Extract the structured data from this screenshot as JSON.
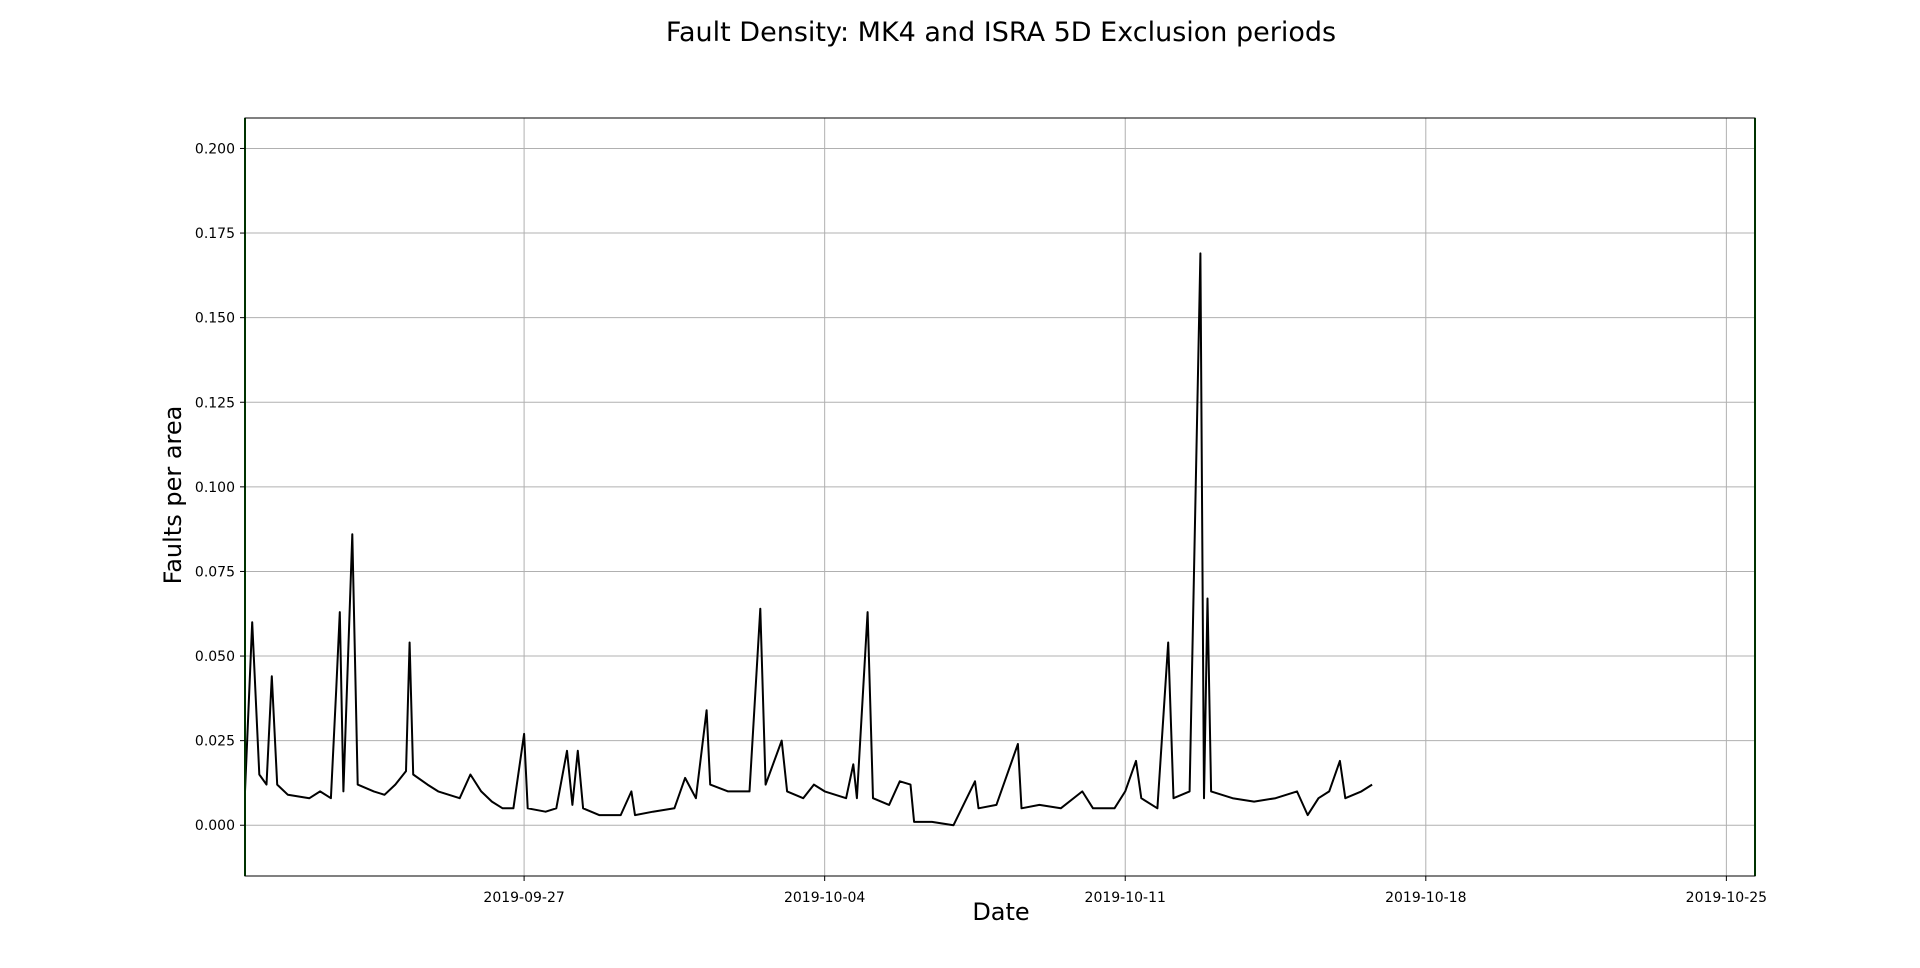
{
  "chart_data": {
    "type": "line",
    "title": "Fault Density: MK4 and ISRA 5D Exclusion periods",
    "xlabel": "Date",
    "ylabel": "Faults per area",
    "x_axis_type": "date",
    "xlim": [
      "2019-09-20T12:00",
      "2019-10-25T16:00"
    ],
    "ylim": [
      -0.015,
      0.209
    ],
    "grid": true,
    "x_ticks": [
      "2019-09-27",
      "2019-10-04",
      "2019-10-11",
      "2019-10-18",
      "2019-10-25"
    ],
    "y_ticks": [
      0.0,
      0.025,
      0.05,
      0.075,
      0.1,
      0.125,
      0.15,
      0.175,
      0.2
    ],
    "y_tick_labels": [
      "0.000",
      "0.025",
      "0.050",
      "0.075",
      "0.100",
      "0.125",
      "0.150",
      "0.175",
      "0.200"
    ],
    "exclusion_markers": {
      "color": "#006400",
      "x": [
        "2019-09-20T12:00",
        "2019-10-25T16:00"
      ]
    },
    "series": [
      {
        "color": "#000000",
        "points": [
          [
            "2019-09-20T12:00",
            0.01
          ],
          [
            "2019-09-20T16:00",
            0.06
          ],
          [
            "2019-09-20T20:00",
            0.015
          ],
          [
            "2019-09-21T00:00",
            0.012
          ],
          [
            "2019-09-21T03:00",
            0.044
          ],
          [
            "2019-09-21T06:00",
            0.012
          ],
          [
            "2019-09-21T12:00",
            0.009
          ],
          [
            "2019-09-22T00:00",
            0.008
          ],
          [
            "2019-09-22T06:00",
            0.01
          ],
          [
            "2019-09-22T12:00",
            0.008
          ],
          [
            "2019-09-22T15:00",
            0.04
          ],
          [
            "2019-09-22T17:00",
            0.063
          ],
          [
            "2019-09-22T19:00",
            0.01
          ],
          [
            "2019-09-23T00:00",
            0.086
          ],
          [
            "2019-09-23T03:00",
            0.012
          ],
          [
            "2019-09-23T12:00",
            0.01
          ],
          [
            "2019-09-23T18:00",
            0.009
          ],
          [
            "2019-09-24T00:00",
            0.012
          ],
          [
            "2019-09-24T06:00",
            0.016
          ],
          [
            "2019-09-24T08:00",
            0.054
          ],
          [
            "2019-09-24T10:00",
            0.015
          ],
          [
            "2019-09-24T18:00",
            0.012
          ],
          [
            "2019-09-25T00:00",
            0.01
          ],
          [
            "2019-09-25T12:00",
            0.008
          ],
          [
            "2019-09-25T18:00",
            0.015
          ],
          [
            "2019-09-26T00:00",
            0.01
          ],
          [
            "2019-09-26T06:00",
            0.007
          ],
          [
            "2019-09-26T12:00",
            0.005
          ],
          [
            "2019-09-26T18:00",
            0.005
          ],
          [
            "2019-09-27T00:00",
            0.027
          ],
          [
            "2019-09-27T02:00",
            0.005
          ],
          [
            "2019-09-27T12:00",
            0.004
          ],
          [
            "2019-09-27T18:00",
            0.005
          ],
          [
            "2019-09-28T00:00",
            0.022
          ],
          [
            "2019-09-28T03:00",
            0.006
          ],
          [
            "2019-09-28T06:00",
            0.022
          ],
          [
            "2019-09-28T09:00",
            0.005
          ],
          [
            "2019-09-28T18:00",
            0.003
          ],
          [
            "2019-09-29T06:00",
            0.003
          ],
          [
            "2019-09-29T12:00",
            0.01
          ],
          [
            "2019-09-29T14:00",
            0.003
          ],
          [
            "2019-09-30T00:00",
            0.004
          ],
          [
            "2019-09-30T12:00",
            0.005
          ],
          [
            "2019-09-30T18:00",
            0.014
          ],
          [
            "2019-10-01T00:00",
            0.008
          ],
          [
            "2019-10-01T06:00",
            0.034
          ],
          [
            "2019-10-01T08:00",
            0.012
          ],
          [
            "2019-10-01T18:00",
            0.01
          ],
          [
            "2019-10-02T06:00",
            0.01
          ],
          [
            "2019-10-02T12:00",
            0.064
          ],
          [
            "2019-10-02T15:00",
            0.012
          ],
          [
            "2019-10-03T00:00",
            0.025
          ],
          [
            "2019-10-03T03:00",
            0.01
          ],
          [
            "2019-10-03T12:00",
            0.008
          ],
          [
            "2019-10-03T18:00",
            0.012
          ],
          [
            "2019-10-04T00:00",
            0.01
          ],
          [
            "2019-10-04T12:00",
            0.008
          ],
          [
            "2019-10-04T16:00",
            0.018
          ],
          [
            "2019-10-04T18:00",
            0.008
          ],
          [
            "2019-10-05T00:00",
            0.063
          ],
          [
            "2019-10-05T03:00",
            0.008
          ],
          [
            "2019-10-05T12:00",
            0.006
          ],
          [
            "2019-10-05T18:00",
            0.013
          ],
          [
            "2019-10-06T00:00",
            0.012
          ],
          [
            "2019-10-06T02:00",
            0.001
          ],
          [
            "2019-10-06T12:00",
            0.001
          ],
          [
            "2019-10-07T00:00",
            0.0
          ],
          [
            "2019-10-07T12:00",
            0.013
          ],
          [
            "2019-10-07T14:00",
            0.005
          ],
          [
            "2019-10-08T00:00",
            0.006
          ],
          [
            "2019-10-08T12:00",
            0.024
          ],
          [
            "2019-10-08T14:00",
            0.005
          ],
          [
            "2019-10-09T00:00",
            0.006
          ],
          [
            "2019-10-09T12:00",
            0.005
          ],
          [
            "2019-10-10T00:00",
            0.01
          ],
          [
            "2019-10-10T06:00",
            0.005
          ],
          [
            "2019-10-10T18:00",
            0.005
          ],
          [
            "2019-10-11T00:00",
            0.01
          ],
          [
            "2019-10-11T06:00",
            0.019
          ],
          [
            "2019-10-11T09:00",
            0.008
          ],
          [
            "2019-10-11T18:00",
            0.005
          ],
          [
            "2019-10-12T00:00",
            0.054
          ],
          [
            "2019-10-12T03:00",
            0.008
          ],
          [
            "2019-10-12T12:00",
            0.01
          ],
          [
            "2019-10-12T18:00",
            0.169
          ],
          [
            "2019-10-12T20:00",
            0.008
          ],
          [
            "2019-10-12T22:00",
            0.067
          ],
          [
            "2019-10-13T00:00",
            0.01
          ],
          [
            "2019-10-13T12:00",
            0.008
          ],
          [
            "2019-10-14T00:00",
            0.007
          ],
          [
            "2019-10-14T12:00",
            0.008
          ],
          [
            "2019-10-15T00:00",
            0.01
          ],
          [
            "2019-10-15T06:00",
            0.003
          ],
          [
            "2019-10-15T12:00",
            0.008
          ],
          [
            "2019-10-15T18:00",
            0.01
          ],
          [
            "2019-10-16T00:00",
            0.019
          ],
          [
            "2019-10-16T03:00",
            0.008
          ],
          [
            "2019-10-16T12:00",
            0.01
          ],
          [
            "2019-10-16T18:00",
            0.012
          ]
        ]
      }
    ]
  }
}
